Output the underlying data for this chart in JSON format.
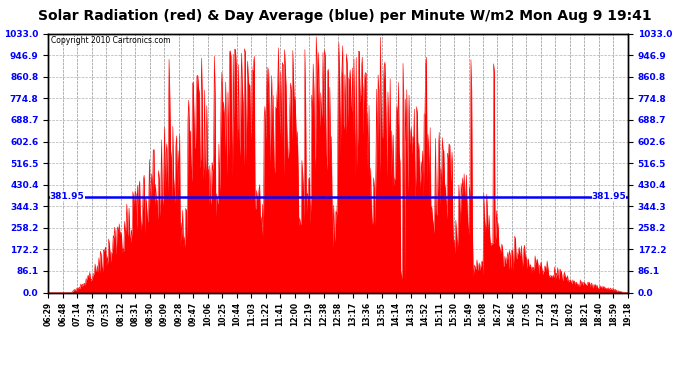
{
  "title": "Solar Radiation (red) & Day Average (blue) per Minute W/m2 Mon Aug 9 19:41",
  "copyright": "Copyright 2010 Cartronics.com",
  "y_max": 1033.0,
  "y_min": 0.0,
  "y_ticks": [
    0.0,
    86.1,
    172.2,
    258.2,
    344.3,
    430.4,
    516.5,
    602.6,
    688.7,
    774.8,
    860.8,
    946.9,
    1033.0
  ],
  "y_tick_labels": [
    "0.0",
    "86.1",
    "172.2",
    "258.2",
    "344.3",
    "430.4",
    "516.5",
    "602.6",
    "688.7",
    "774.8",
    "860.8",
    "946.9",
    "1033.0"
  ],
  "day_average": 381.95,
  "bar_color": "#FF0000",
  "avg_line_color": "#0000FF",
  "background_color": "#FFFFFF",
  "title_fontsize": 10,
  "x_tick_labels": [
    "06:29",
    "06:48",
    "07:14",
    "07:34",
    "07:53",
    "08:12",
    "08:31",
    "08:50",
    "09:09",
    "09:28",
    "09:47",
    "10:06",
    "10:25",
    "10:44",
    "11:03",
    "11:22",
    "11:41",
    "12:00",
    "12:19",
    "12:38",
    "12:58",
    "13:17",
    "13:36",
    "13:55",
    "14:14",
    "14:33",
    "14:52",
    "15:11",
    "15:30",
    "15:49",
    "16:08",
    "16:27",
    "16:46",
    "17:05",
    "17:24",
    "17:43",
    "18:02",
    "18:21",
    "18:40",
    "18:59",
    "19:18"
  ]
}
